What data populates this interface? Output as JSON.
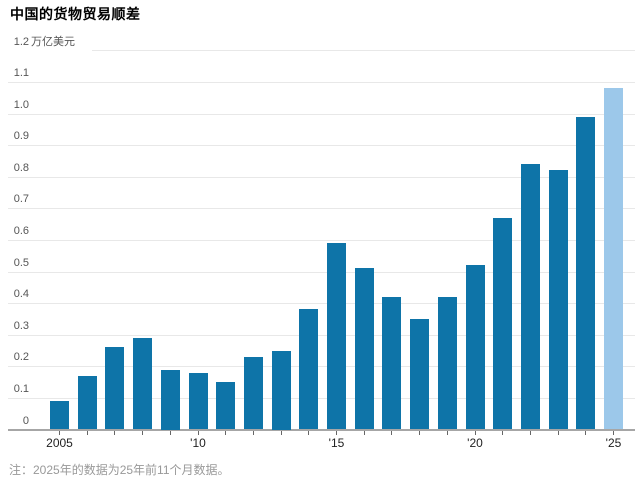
{
  "header": {
    "title": "中国的货物贸易顺差"
  },
  "note": "注：2025年的数据为25年前11个月数据。",
  "chart_data": {
    "type": "bar",
    "title": "中国的货物贸易顺差",
    "unit_label": "万亿美元",
    "categories": [
      "2005",
      "2006",
      "2007",
      "2008",
      "2009",
      "2010",
      "2011",
      "2012",
      "2013",
      "2014",
      "2015",
      "2016",
      "2017",
      "2018",
      "2019",
      "2020",
      "2021",
      "2022",
      "2023",
      "2024",
      "2025"
    ],
    "values": [
      0.09,
      0.17,
      0.26,
      0.29,
      0.19,
      0.18,
      0.15,
      0.23,
      0.25,
      0.38,
      0.59,
      0.51,
      0.42,
      0.35,
      0.42,
      0.52,
      0.67,
      0.84,
      0.82,
      0.99,
      1.08
    ],
    "highlight_index": 20,
    "ylim": [
      0,
      1.2
    ],
    "y_tick_interval": 0.1,
    "y_tick_labels": [
      "0",
      "0.1",
      "0.2",
      "0.3",
      "0.4",
      "0.5",
      "0.6",
      "0.7",
      "0.8",
      "0.9",
      "1.0",
      "1.1"
    ],
    "y_top_tick": "1.2",
    "x_tick_labels": [
      {
        "index": 0,
        "label": "2005"
      },
      {
        "index": 5,
        "label": "'10"
      },
      {
        "index": 10,
        "label": "'15"
      },
      {
        "index": 15,
        "label": "'20"
      },
      {
        "index": 20,
        "label": "'25"
      }
    ],
    "grid": true,
    "legend": false,
    "colors": {
      "bar": "#0e74a8",
      "bar_highlight": "#9cc8ea",
      "gridline": "#e8e8e8",
      "axis_line": "#a6a6a6",
      "tick_mark": "#666666",
      "y_label": "#555555",
      "x_label": "#222222",
      "note": "#999999"
    }
  }
}
